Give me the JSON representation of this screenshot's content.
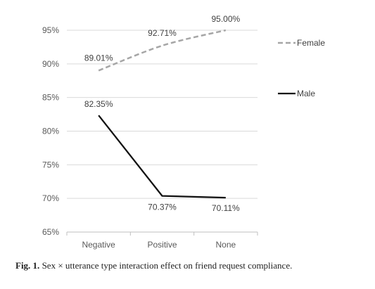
{
  "chart_data": {
    "type": "line",
    "title": "",
    "xlabel": "",
    "ylabel": "",
    "categories": [
      "Negative",
      "Positive",
      "None"
    ],
    "ylim": [
      65,
      95
    ],
    "yticks": [
      "65%",
      "70%",
      "75%",
      "80%",
      "85%",
      "90%",
      "95%"
    ],
    "ytick_values": [
      65,
      70,
      75,
      80,
      85,
      90,
      95
    ],
    "grid": true,
    "legend_position": "right",
    "series": [
      {
        "name": "Female",
        "values": [
          89.01,
          92.71,
          95.0
        ],
        "labels": [
          "89.01%",
          "92.71%",
          "95.00%"
        ],
        "color": "#a6a6a6",
        "style": "dashed",
        "smooth": true
      },
      {
        "name": "Male",
        "values": [
          82.35,
          70.37,
          70.11
        ],
        "labels": [
          "82.35%",
          "70.37%",
          "70.11%"
        ],
        "color": "#111111",
        "style": "solid",
        "smooth": false
      }
    ]
  },
  "caption": {
    "prefix": "Fig. 1.",
    "text": "Sex × utterance type interaction effect on friend request compliance."
  }
}
